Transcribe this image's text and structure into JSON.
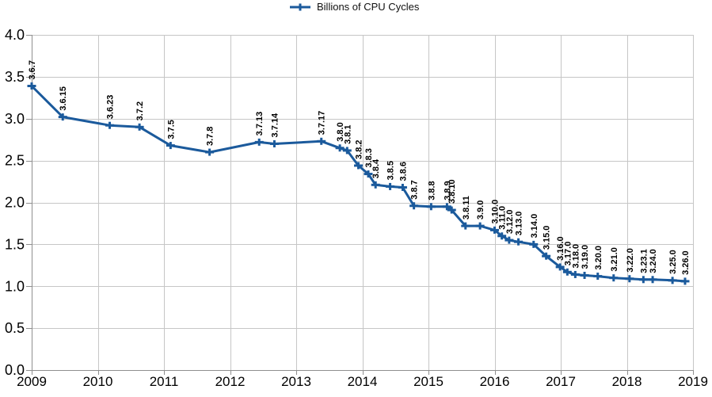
{
  "chart_data": {
    "type": "line",
    "title": "",
    "legend_label": "Billions of CPU Cycles",
    "series_name": "Billions of CPU Cycles",
    "marker": "plus",
    "grid": true,
    "legend_position": "top-center",
    "line_color": "#1b5a9c",
    "grid_color": "#c6c6c6",
    "axis_color": "#8f8f8f",
    "label_color": "#000000",
    "xlabel": "",
    "ylabel": "",
    "xlim": [
      2009,
      2019
    ],
    "ylim": [
      0.0,
      4.0
    ],
    "x_ticks": [
      {
        "v": 2009,
        "label": "2009"
      },
      {
        "v": 2010,
        "label": "2010"
      },
      {
        "v": 2011,
        "label": "2011"
      },
      {
        "v": 2012,
        "label": "2012"
      },
      {
        "v": 2013,
        "label": "2013"
      },
      {
        "v": 2014,
        "label": "2014"
      },
      {
        "v": 2015,
        "label": "2015"
      },
      {
        "v": 2016,
        "label": "2016"
      },
      {
        "v": 2017,
        "label": "2017"
      },
      {
        "v": 2018,
        "label": "2018"
      },
      {
        "v": 2019,
        "label": "2019"
      }
    ],
    "y_ticks": [
      {
        "v": 4.0,
        "label": "4.0"
      },
      {
        "v": 3.5,
        "label": "3.5"
      },
      {
        "v": 3.0,
        "label": "3.0"
      },
      {
        "v": 2.5,
        "label": "2.5"
      },
      {
        "v": 2.0,
        "label": "2.0"
      },
      {
        "v": 1.5,
        "label": "1.5"
      },
      {
        "v": 1.0,
        "label": "1.0"
      },
      {
        "v": 0.5,
        "label": "0.5"
      },
      {
        "v": 0.0,
        "label": "0.0"
      }
    ],
    "points": [
      {
        "label": "3.6.7",
        "x": 2009.0,
        "y": 3.39
      },
      {
        "label": "3.6.15",
        "x": 2009.47,
        "y": 3.02
      },
      {
        "label": "3.6.23",
        "x": 2010.18,
        "y": 2.92
      },
      {
        "label": "3.7.2",
        "x": 2010.63,
        "y": 2.9
      },
      {
        "label": "3.7.5",
        "x": 2011.1,
        "y": 2.68
      },
      {
        "label": "3.7.8",
        "x": 2011.69,
        "y": 2.6
      },
      {
        "label": "3.7.13",
        "x": 2012.44,
        "y": 2.72
      },
      {
        "label": "3.7.14",
        "x": 2012.67,
        "y": 2.7
      },
      {
        "label": "3.7.17",
        "x": 2013.38,
        "y": 2.73
      },
      {
        "label": "3.8.0",
        "x": 2013.66,
        "y": 2.65
      },
      {
        "label": "3.8.1",
        "x": 2013.77,
        "y": 2.62
      },
      {
        "label": "3.8.2",
        "x": 2013.94,
        "y": 2.44
      },
      {
        "label": "3.8.3",
        "x": 2014.09,
        "y": 2.34
      },
      {
        "label": "3.8.4",
        "x": 2014.2,
        "y": 2.21
      },
      {
        "label": "3.8.5",
        "x": 2014.42,
        "y": 2.19
      },
      {
        "label": "3.8.6",
        "x": 2014.61,
        "y": 2.18
      },
      {
        "label": "3.8.7",
        "x": 2014.78,
        "y": 1.96
      },
      {
        "label": "3.8.8",
        "x": 2015.04,
        "y": 1.95
      },
      {
        "label": "3.8.9",
        "x": 2015.28,
        "y": 1.95
      },
      {
        "label": "3.8.10",
        "x": 2015.35,
        "y": 1.91
      },
      {
        "label": "3.8.11",
        "x": 2015.56,
        "y": 1.72
      },
      {
        "label": "3.9.0",
        "x": 2015.78,
        "y": 1.72
      },
      {
        "label": "3.10.0",
        "x": 2016.0,
        "y": 1.67
      },
      {
        "label": "3.11.0",
        "x": 2016.11,
        "y": 1.6
      },
      {
        "label": "3.12.0",
        "x": 2016.22,
        "y": 1.55
      },
      {
        "label": "3.13.0",
        "x": 2016.36,
        "y": 1.53
      },
      {
        "label": "3.14.0",
        "x": 2016.59,
        "y": 1.5
      },
      {
        "label": "3.15.0",
        "x": 2016.78,
        "y": 1.36
      },
      {
        "label": "3.16.0",
        "x": 2016.99,
        "y": 1.23
      },
      {
        "label": "3.17.0",
        "x": 2017.1,
        "y": 1.17
      },
      {
        "label": "3.18.0",
        "x": 2017.22,
        "y": 1.14
      },
      {
        "label": "3.19.0",
        "x": 2017.36,
        "y": 1.13
      },
      {
        "label": "3.20.0",
        "x": 2017.56,
        "y": 1.12
      },
      {
        "label": "3.21.0",
        "x": 2017.8,
        "y": 1.1
      },
      {
        "label": "3.22.0",
        "x": 2018.04,
        "y": 1.09
      },
      {
        "label": "3.23.1",
        "x": 2018.25,
        "y": 1.08
      },
      {
        "label": "3.24.0",
        "x": 2018.39,
        "y": 1.08
      },
      {
        "label": "3.25.0",
        "x": 2018.69,
        "y": 1.07
      },
      {
        "label": "3.26.0",
        "x": 2018.88,
        "y": 1.06
      }
    ]
  }
}
